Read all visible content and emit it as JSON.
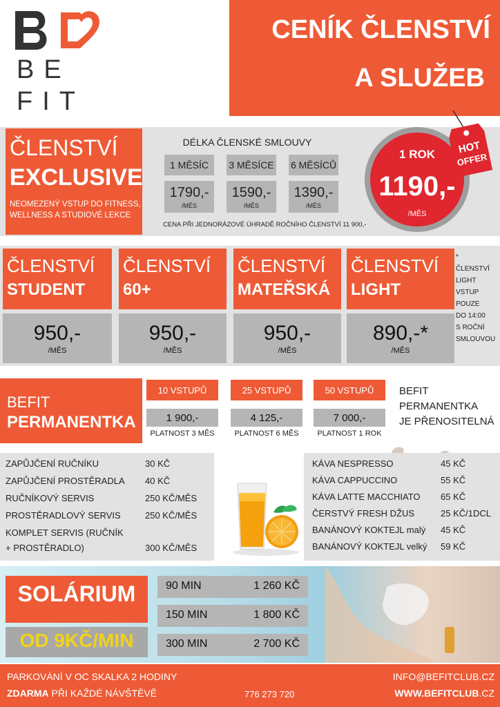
{
  "logo": {
    "letter": "B",
    "line1": "BE",
    "line2": "FIT",
    "icon": "heart-icon"
  },
  "title": {
    "line1": "CENÍK ČLENSTVÍ",
    "line2": "A SLUŽEB"
  },
  "exclusive": {
    "label1": "ČLENSTVÍ",
    "label2": "EXCLUSIVE",
    "description": "NEOMEZENÝ VSTUP DO FITNESS, WELLNESS A STUDIOVÉ LEKCE",
    "length_title": "DÉLKA ČLENSKÉ SMLOUVY",
    "options": [
      {
        "length": "1 MĚSÍC",
        "price": "1790,-",
        "unit": "/MĚS"
      },
      {
        "length": "3 MĚSÍCE",
        "price": "1590,-",
        "unit": "/MĚS"
      },
      {
        "length": "6 MĚSÍCŮ",
        "price": "1390,-",
        "unit": "/MĚS"
      }
    ],
    "note": "CENA PŘI JEDNORÁZOVÉ ÚHRADĚ ROČNÍHO ČLENSTVÍ 11 900,-",
    "offer": {
      "length": "1 ROK",
      "price": "1190,-",
      "unit": "/MĚS",
      "tag_line1": "HOT",
      "tag_line2": "OFFER"
    }
  },
  "memberships": [
    {
      "label1": "ČLENSTVÍ",
      "label2": "STUDENT",
      "price": "950,-",
      "unit": "/MĚS"
    },
    {
      "label1": "ČLENSTVÍ",
      "label2": "60+",
      "price": "950,-",
      "unit": "/MĚS"
    },
    {
      "label1": "ČLENSTVÍ",
      "label2": "MATEŘSKÁ",
      "price": "950,-",
      "unit": "/MĚS"
    },
    {
      "label1": "ČLENSTVÍ",
      "label2": "LIGHT",
      "price": "890,-*",
      "unit": "/MĚS"
    }
  ],
  "light_note": [
    "*",
    "ČLENSTVÍ",
    "LIGHT",
    "VSTUP",
    "POUZE",
    "DO 14:00",
    "S ROČNÍ",
    "SMLOUVOU"
  ],
  "permanentka": {
    "label1": "BEFIT",
    "label2": "PERMANENTKA",
    "options": [
      {
        "entries": "10 VSTUPŮ",
        "price": "1 900,-",
        "validity": "PLATNOST 3 MĚS"
      },
      {
        "entries": "25 VSTUPŮ",
        "price": "4 125,-",
        "validity": "PLATNOST 6 MĚS"
      },
      {
        "entries": "50 VSTUPŮ",
        "price": "7 000,-",
        "validity": "PLATNOST 1 ROK"
      }
    ],
    "note": [
      "BEFIT",
      "PERMANENTKA",
      "JE PŘENOSITELNÁ"
    ]
  },
  "services": [
    {
      "name": "ZAPŮJČENÍ RUČNÍKU",
      "price": "30 KČ"
    },
    {
      "name": "ZAPŮJČENÍ PROSTĚRADLA",
      "price": "40 KČ"
    },
    {
      "name": "RUČNÍKOVÝ SERVIS",
      "price": "250 KČ/MĚS"
    },
    {
      "name": "PROSTĚRADLOVÝ SERVIS",
      "price": "250 KČ/MĚS"
    },
    {
      "name": "KOMPLET SERVIS (RUČNÍK",
      "name2": "+ PROSTĚRADLO)",
      "price": "300 KČ/MĚS"
    }
  ],
  "cafe": [
    {
      "name": "KÁVA NESPRESSO",
      "price": "45 KČ"
    },
    {
      "name": "KÁVA CAPPUCCINO",
      "price": "55 KČ"
    },
    {
      "name": "KÁVA LATTE MACCHIATO",
      "price": "65 KČ"
    },
    {
      "name": "ČERSTVÝ FRESH DŽUS",
      "price": "25 KČ/1DCL"
    },
    {
      "name": "BANÁNOVÝ KOKTEJL malý",
      "price": "45 KČ"
    },
    {
      "name": "BANÁNOVÝ KOKTEJL velký",
      "price": "59 KČ"
    }
  ],
  "solarium": {
    "title": "SOLÁRIUM",
    "from": "OD 9KČ/MIN",
    "rows": [
      {
        "time": "90 MIN",
        "price": "1 260 KČ"
      },
      {
        "time": "150 MIN",
        "price": "1 800 KČ"
      },
      {
        "time": "300 MIN",
        "price": "2 700 KČ"
      }
    ]
  },
  "footer": {
    "parking_line1": "PARKOVÁNÍ V OC SKALKA 2 HODINY",
    "parking_bold": "ZDARMA",
    "parking_line2_rest": " PŘI KAŽDÉ NÁVŠTĚVĚ",
    "phone": "776 273 720",
    "email": "INFO@BEFITCLUB.CZ",
    "web_bold": "WWW.BEFITCLUB",
    "web_rest": ".CZ"
  },
  "colors": {
    "accent": "#ee5a35",
    "offer_red": "#e0262e",
    "gray": "#b5b5b5",
    "solarium_yellow": "#f2d21b"
  }
}
